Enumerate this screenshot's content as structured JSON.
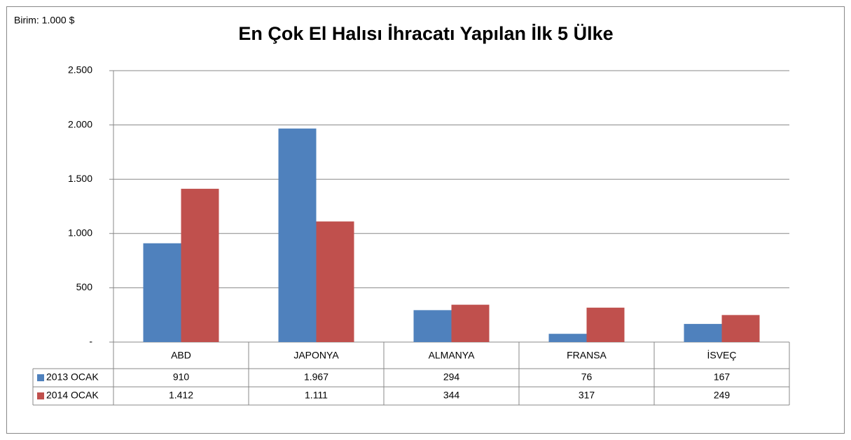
{
  "chart_data": {
    "type": "bar",
    "title": "En Çok El Halısı İhracatı Yapılan İlk 5 Ülke",
    "annotation": "Birim: 1.000 $",
    "categories": [
      "ABD",
      "JAPONYA",
      "ALMANYA",
      "FRANSA",
      "İSVEÇ"
    ],
    "series": [
      {
        "name": "2013 OCAK",
        "color": "#4f81bd",
        "values": [
          910,
          1967,
          294,
          76,
          167
        ],
        "value_labels": [
          "910",
          "1.967",
          "294",
          "76",
          "167"
        ]
      },
      {
        "name": "2014 OCAK",
        "color": "#c0504d",
        "values": [
          1412,
          1111,
          344,
          317,
          249
        ],
        "value_labels": [
          "1.412",
          "1.111",
          "344",
          "317",
          "249"
        ]
      }
    ],
    "ylim": [
      0,
      2500
    ],
    "yticks": [
      {
        "value": 0,
        "label": "-"
      },
      500,
      {
        "value": 1000,
        "label": "1.000"
      },
      {
        "value": 1500,
        "label": "1.500"
      },
      {
        "value": 2000,
        "label": "2.000"
      },
      {
        "value": 2500,
        "label": "2.500"
      }
    ],
    "grid": true,
    "data_table": true
  }
}
